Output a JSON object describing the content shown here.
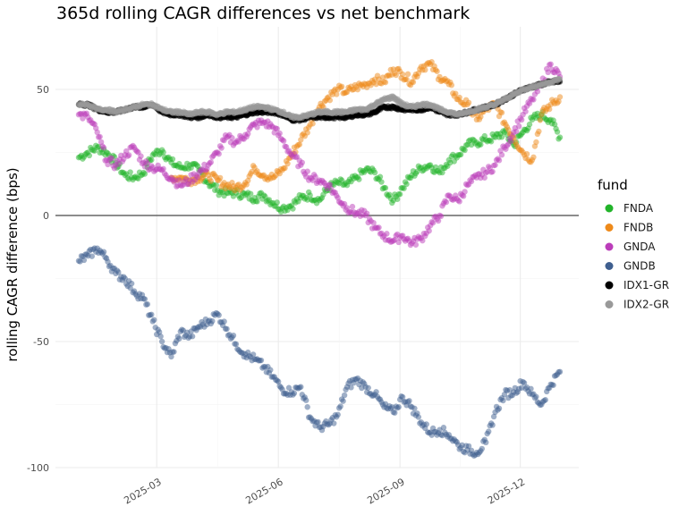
{
  "chart_data": {
    "type": "scatter",
    "title": "365d rolling CAGR differences vs net benchmark",
    "xlabel": "",
    "ylabel": "rolling CAGR difference (bps)",
    "x_type": "date",
    "x_range": [
      "2024-12-15",
      "2026-01-15"
    ],
    "ylim": [
      -100,
      73
    ],
    "y_ticks": [
      -100,
      -50,
      0,
      50
    ],
    "y_tick_labels": [
      "-100",
      "-50",
      "0",
      "50"
    ],
    "x_ticks": [
      "2025-03-01",
      "2025-06-01",
      "2025-09-01",
      "2025-12-01"
    ],
    "x_tick_labels": [
      "2025-03",
      "2025-06",
      "2025-09",
      "2025-12"
    ],
    "grid": true,
    "reference_line_y": 0,
    "legend": {
      "title": "fund",
      "position": "right"
    },
    "x_days_note": "x values are day-of-year 2025 (0 = 2025-01-01)",
    "series": [
      {
        "name": "FNDA",
        "color": "#22b42a",
        "x": [
          0,
          7,
          14,
          21,
          28,
          35,
          42,
          49,
          56,
          63,
          70,
          77,
          84,
          91,
          98,
          105,
          112,
          119,
          126,
          133,
          140,
          147,
          154,
          161,
          168,
          175,
          182,
          189,
          196,
          203,
          210,
          217,
          224,
          231,
          238,
          245,
          252,
          259,
          266,
          273,
          280,
          287,
          294,
          301,
          308,
          315,
          322,
          329,
          336,
          343,
          350,
          357,
          364
        ],
        "y": [
          23,
          25,
          27,
          25,
          21,
          16,
          15,
          17,
          24,
          26,
          21,
          19,
          20,
          18,
          13,
          10,
          9,
          9,
          8,
          7,
          8,
          5,
          3,
          4,
          7,
          8,
          6,
          11,
          13,
          12,
          15,
          18,
          17,
          11,
          6,
          11,
          16,
          19,
          20,
          17,
          22,
          24,
          28,
          29,
          30,
          31,
          33,
          28,
          33,
          38,
          40,
          38,
          31
        ]
      },
      {
        "name": "FNDB",
        "color": "#ee8a1a",
        "x": [
          70,
          77,
          84,
          91,
          98,
          105,
          112,
          119,
          126,
          133,
          140,
          147,
          154,
          161,
          168,
          175,
          182,
          189,
          196,
          203,
          210,
          217,
          224,
          231,
          238,
          245,
          252,
          259,
          266,
          273,
          280,
          287,
          294,
          301,
          308,
          315,
          322,
          329,
          336,
          343,
          350,
          357,
          364
        ],
        "y": [
          15,
          15,
          14,
          15,
          16,
          14,
          12,
          11,
          13,
          19,
          16,
          15,
          18,
          24,
          30,
          36,
          43,
          47,
          50,
          49,
          51,
          52,
          54,
          53,
          58,
          56,
          53,
          59,
          60,
          55,
          52,
          46,
          44,
          38,
          42,
          44,
          37,
          31,
          25,
          22,
          40,
          44,
          47
        ]
      },
      {
        "name": "GNDA",
        "color": "#bb3dba",
        "x": [
          0,
          7,
          14,
          21,
          28,
          35,
          42,
          49,
          56,
          63,
          70,
          77,
          84,
          91,
          98,
          105,
          112,
          119,
          126,
          133,
          140,
          147,
          154,
          161,
          168,
          175,
          182,
          189,
          196,
          203,
          210,
          217,
          224,
          231,
          238,
          245,
          252,
          259,
          266,
          273,
          280,
          287,
          294,
          301,
          308,
          315,
          322,
          329,
          336,
          343,
          350,
          357,
          364
        ],
        "y": [
          40,
          39,
          33,
          22,
          20,
          24,
          27,
          21,
          19,
          18,
          15,
          12,
          14,
          17,
          20,
          25,
          31,
          29,
          32,
          36,
          37,
          35,
          30,
          24,
          20,
          15,
          14,
          12,
          7,
          3,
          1,
          0,
          -5,
          -8,
          -10,
          -8,
          -11,
          -9,
          -4,
          0,
          8,
          6,
          12,
          15,
          17,
          20,
          27,
          33,
          40,
          46,
          52,
          60,
          55
        ]
      },
      {
        "name": "GNDB",
        "color": "#3f5f8f",
        "x": [
          0,
          7,
          14,
          21,
          28,
          35,
          42,
          49,
          56,
          63,
          70,
          77,
          84,
          91,
          98,
          105,
          112,
          119,
          126,
          133,
          140,
          147,
          154,
          161,
          168,
          175,
          182,
          189,
          196,
          203,
          210,
          217,
          224,
          231,
          238,
          245,
          252,
          259,
          266,
          273,
          280,
          287,
          294,
          301,
          308,
          315,
          322,
          329,
          336,
          343,
          350,
          357,
          364
        ],
        "y": [
          -18,
          -16,
          -13,
          -17,
          -23,
          -25,
          -30,
          -33,
          -42,
          -50,
          -56,
          -46,
          -48,
          -44,
          -42,
          -39,
          -45,
          -51,
          -55,
          -57,
          -60,
          -64,
          -69,
          -70,
          -68,
          -80,
          -84,
          -83,
          -79,
          -68,
          -65,
          -68,
          -71,
          -76,
          -78,
          -72,
          -76,
          -82,
          -86,
          -85,
          -87,
          -91,
          -93,
          -94,
          -90,
          -78,
          -71,
          -70,
          -66,
          -71,
          -75,
          -67,
          -62
        ]
      },
      {
        "name": "IDX1-GR",
        "color": "#000000",
        "x": [
          0,
          7,
          14,
          21,
          28,
          35,
          42,
          49,
          56,
          63,
          70,
          77,
          84,
          91,
          98,
          105,
          112,
          119,
          126,
          133,
          140,
          147,
          154,
          161,
          168,
          175,
          182,
          189,
          196,
          203,
          210,
          217,
          224,
          231,
          238,
          245,
          252,
          259,
          266,
          273,
          280,
          287,
          294,
          301,
          308,
          315,
          322,
          329,
          336,
          343,
          350,
          357,
          364
        ],
        "y": [
          44,
          44,
          42,
          41,
          41,
          42,
          43,
          43,
          44,
          41,
          40,
          40,
          39,
          39,
          40,
          39,
          39,
          39,
          40,
          41,
          41,
          41,
          40,
          38,
          38,
          39,
          39,
          39,
          39,
          39,
          40,
          40,
          41,
          43,
          43,
          42,
          42,
          42,
          43,
          41,
          40,
          40,
          41,
          42,
          43,
          44,
          46,
          48,
          50,
          51,
          52,
          53,
          53
        ]
      },
      {
        "name": "IDX2-GR",
        "color": "#999999",
        "x": [
          0,
          7,
          14,
          21,
          28,
          35,
          42,
          49,
          56,
          63,
          70,
          77,
          84,
          91,
          98,
          105,
          112,
          119,
          126,
          133,
          140,
          147,
          154,
          161,
          168,
          175,
          182,
          189,
          196,
          203,
          210,
          217,
          224,
          231,
          238,
          245,
          252,
          259,
          266,
          273,
          280,
          287,
          294,
          301,
          308,
          315,
          322,
          329,
          336,
          343,
          350,
          357,
          364
        ],
        "y": [
          44,
          44,
          42,
          42,
          41,
          42,
          43,
          44,
          44,
          42,
          41,
          41,
          40,
          41,
          41,
          40,
          41,
          41,
          42,
          43,
          43,
          42,
          41,
          39,
          39,
          40,
          41,
          41,
          41,
          41,
          42,
          42,
          44,
          46,
          47,
          44,
          43,
          44,
          44,
          42,
          41,
          40,
          41,
          42,
          43,
          44,
          46,
          48,
          50,
          51,
          52,
          53,
          54
        ]
      }
    ]
  }
}
